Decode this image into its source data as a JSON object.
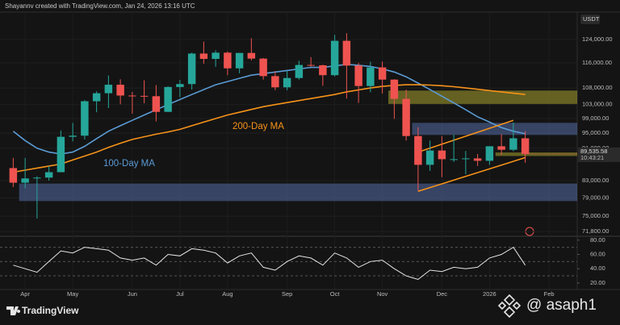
{
  "header": "Shayannv created with TradingView.com, Jan 24, 2026 13:16 UTC",
  "chart_data": {
    "type": "candlestick",
    "currency": "USDT",
    "categories": [
      null,
      "Apr",
      null,
      null,
      null,
      "May",
      null,
      null,
      null,
      null,
      "Jun",
      null,
      null,
      null,
      "Jul",
      null,
      null,
      null,
      "Aug",
      null,
      null,
      null,
      null,
      "Sep",
      null,
      null,
      null,
      "Oct",
      null,
      null,
      null,
      "Nov",
      null,
      null,
      null,
      null,
      "Dec",
      null,
      null,
      null,
      "2026",
      null,
      null,
      null,
      null,
      "Feb"
    ],
    "open": [
      86000,
      82500,
      83500,
      83700,
      85000,
      94000,
      94300,
      104000,
      106400,
      109000,
      105700,
      105600,
      105500,
      100900,
      108300,
      109200,
      119100,
      117300,
      119400,
      114200,
      119300,
      117400,
      111700,
      108200,
      111100,
      115300,
      115200,
      112000,
      123500,
      115100,
      108600,
      114500,
      110600,
      104700,
      94200,
      86800,
      90400,
      88200,
      88200,
      88400,
      87800,
      91500,
      90600,
      93600,
      null,
      null
    ],
    "high": [
      88500,
      88500,
      84000,
      86500,
      95700,
      97800,
      104300,
      107000,
      111900,
      110700,
      106800,
      110400,
      108900,
      108500,
      110500,
      119400,
      123200,
      120200,
      119800,
      119300,
      124400,
      117600,
      113300,
      113400,
      116700,
      117900,
      115400,
      125600,
      126200,
      116000,
      116400,
      116400,
      110700,
      107500,
      96600,
      93000,
      94200,
      94600,
      90300,
      89500,
      91500,
      94700,
      97900,
      95500,
      null,
      null
    ],
    "low": [
      81500,
      81200,
      74500,
      83000,
      85000,
      92800,
      93300,
      100800,
      102000,
      103100,
      100400,
      103400,
      98200,
      100900,
      105200,
      107500,
      115700,
      114700,
      112000,
      112600,
      116800,
      110600,
      107300,
      107300,
      110600,
      114800,
      108700,
      111600,
      104800,
      103500,
      106700,
      106300,
      98900,
      93000,
      80600,
      85300,
      83800,
      87500,
      84500,
      86500,
      86800,
      89300,
      90200,
      87300,
      null,
      null
    ],
    "close": [
      82500,
      83500,
      83700,
      85000,
      94000,
      94300,
      104000,
      106400,
      109000,
      105700,
      105600,
      105500,
      100900,
      108300,
      109200,
      119100,
      117300,
      119400,
      114200,
      119300,
      117400,
      111700,
      108200,
      111100,
      115300,
      115200,
      112000,
      123500,
      115100,
      108600,
      114500,
      110600,
      104700,
      94200,
      86800,
      90400,
      88200,
      88200,
      88400,
      87800,
      91500,
      90600,
      93600,
      89535.58,
      null,
      null
    ],
    "up_color": "#26a69a",
    "down_color": "#ef5350",
    "log_scale": true,
    "ylim": [
      71000,
      134000
    ],
    "yticks": [
      {
        "value": 71800,
        "label": "71,800.00"
      },
      {
        "value": 75000,
        "label": "75,000.00"
      },
      {
        "value": 79000,
        "label": "79,000.00"
      },
      {
        "value": 83000,
        "label": "83,000.00"
      },
      {
        "value": 91000,
        "label": "91,000.00"
      },
      {
        "value": 95000,
        "label": "95,000.00"
      },
      {
        "value": 99000,
        "label": "99,000.00"
      },
      {
        "value": 103000,
        "label": "103,000.00"
      },
      {
        "value": 108000,
        "label": "108,000.00"
      },
      {
        "value": 116000,
        "label": "116,000.00"
      },
      {
        "value": 124000,
        "label": "124,000.00"
      }
    ],
    "series": [
      {
        "name": "100-Day MA",
        "color": "#5b9bd5",
        "values": [
          95500,
          93000,
          91000,
          90000,
          89500,
          90000,
          91500,
          93500,
          95500,
          97000,
          98500,
          100000,
          101500,
          103000,
          104500,
          106000,
          107500,
          109000,
          110000,
          111000,
          112000,
          112500,
          113000,
          113500,
          114000,
          114500,
          114500,
          115000,
          115500,
          115200,
          114800,
          114000,
          113000,
          111500,
          109500,
          107500,
          105500,
          103500,
          101500,
          99500,
          98000,
          96500,
          95500,
          94800,
          null,
          null
        ]
      },
      {
        "name": "200-Day MA",
        "color": "#f7931a",
        "values": [
          85000,
          85500,
          86000,
          86500,
          87000,
          88000,
          89000,
          90000,
          91200,
          92300,
          93300,
          94000,
          94700,
          95300,
          96000,
          97000,
          98000,
          99000,
          100000,
          100800,
          101600,
          102400,
          103000,
          103600,
          104200,
          104800,
          105400,
          106000,
          106800,
          107400,
          108000,
          108500,
          108800,
          109000,
          109000,
          108900,
          108700,
          108400,
          108000,
          107600,
          107200,
          106800,
          106400,
          106000,
          null,
          null
        ]
      }
    ],
    "zones": [
      {
        "from": 1,
        "low": 78300,
        "high": 82300,
        "color": "rgba(90,115,180,0.5)"
      },
      {
        "from": 34,
        "low": 94500,
        "high": 97800,
        "color": "rgba(90,115,180,0.5)"
      },
      {
        "from": 32,
        "low": 103200,
        "high": 107200,
        "color": "rgba(165,160,45,0.55)"
      },
      {
        "from": 41,
        "low": 89000,
        "high": 89900,
        "color": "rgba(165,160,45,0.55)"
      }
    ],
    "trendlines": [
      {
        "from": [
          34,
          90000
        ],
        "to": [
          42,
          98500
        ],
        "color": "#f7931a"
      },
      {
        "from": [
          34,
          80500
        ],
        "to": [
          43,
          88600
        ],
        "color": "#f7931a"
      }
    ],
    "last_price": {
      "label": "89,535.58",
      "countdown": "10:43:21"
    },
    "rsi": {
      "color": "#e6e6e6",
      "ylim": [
        12,
        82
      ],
      "yticks": [
        {
          "value": 20,
          "label": "20.00"
        },
        {
          "value": 40,
          "label": "40.00"
        },
        {
          "value": 60,
          "label": "60.00"
        },
        {
          "value": 80,
          "label": "80.00"
        }
      ],
      "levels": [
        30,
        50,
        70
      ],
      "values": [
        45,
        40,
        35,
        50,
        65,
        62,
        70,
        68,
        66,
        55,
        52,
        55,
        45,
        60,
        58,
        68,
        66,
        62,
        48,
        58,
        62,
        42,
        38,
        50,
        58,
        55,
        45,
        62,
        55,
        42,
        50,
        52,
        40,
        30,
        25,
        38,
        36,
        42,
        40,
        42,
        55,
        60,
        70,
        45,
        null,
        null
      ]
    }
  },
  "footer": {
    "brand": "TradingView",
    "watermark": "@ asaph1"
  }
}
